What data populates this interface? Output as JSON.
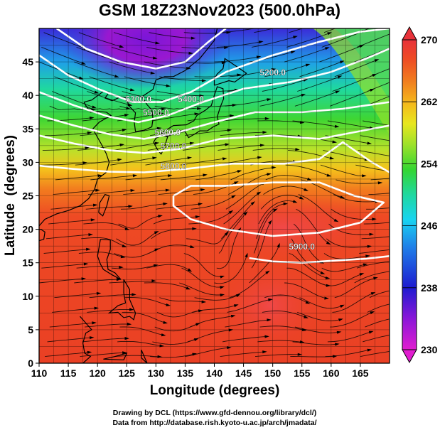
{
  "title": "GSM 18Z23Nov2023 (500.0hPa)",
  "x_axis": {
    "label": "Longitude (degrees)",
    "ticks": [
      110,
      115,
      120,
      125,
      130,
      135,
      140,
      145,
      150,
      155,
      160,
      165
    ],
    "range": [
      110,
      170
    ]
  },
  "y_axis": {
    "label": "Latitude  (degrees)",
    "ticks": [
      0,
      5,
      10,
      15,
      20,
      25,
      30,
      35,
      40,
      45
    ],
    "range": [
      0,
      50
    ]
  },
  "colorbar": {
    "min": 230,
    "max": 270,
    "tick_labels": [
      "230",
      "238",
      "246",
      "254",
      "262",
      "270"
    ],
    "colors": [
      "#e11dd0",
      "#8b16d8",
      "#1e1bd0",
      "#1f7ee8",
      "#18d4f0",
      "#1fd8a0",
      "#33d633",
      "#9be12a",
      "#e8e61e",
      "#f5b51c",
      "#f07a1e",
      "#ee4a24",
      "#e8323a"
    ]
  },
  "contours": {
    "color": "#ffffff",
    "labels": [
      {
        "text": "5200.0",
        "lon": 150,
        "lat": 43
      },
      {
        "text": "5300.0",
        "lon": 127,
        "lat": 39
      },
      {
        "text": "5400.0",
        "lon": 136,
        "lat": 39
      },
      {
        "text": "5500.0",
        "lon": 130,
        "lat": 37
      },
      {
        "text": "5600.0",
        "lon": 132,
        "lat": 34
      },
      {
        "text": "5700.0",
        "lon": 133,
        "lat": 32
      },
      {
        "text": "5800.0",
        "lon": 133,
        "lat": 29
      },
      {
        "text": "5900.0",
        "lon": 155,
        "lat": 17
      }
    ]
  },
  "credits": [
    "Drawing by DCL (https://www.gfd-dennou.org/library/dcl/)",
    "Data from http://database.rish.kyoto-u.ac.jp/arch/jmadata/"
  ]
}
